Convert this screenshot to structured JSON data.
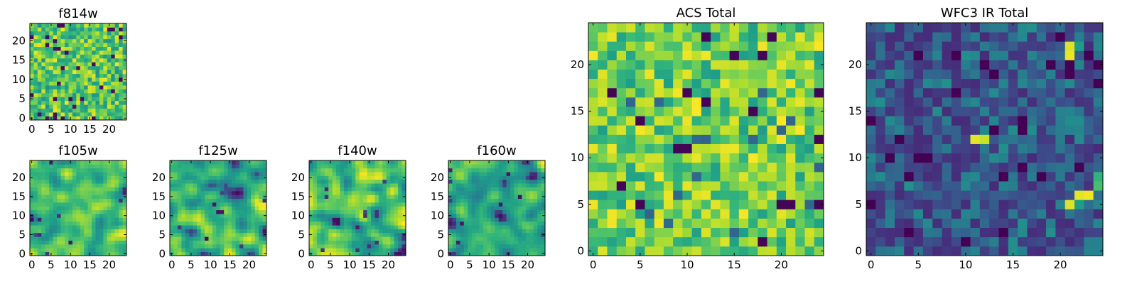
{
  "chart_data": [
    {
      "type": "heatmap",
      "title": "f814w",
      "grid_size": [
        25,
        25
      ],
      "xlim": [
        -0.5,
        24.5
      ],
      "ylim": [
        -0.5,
        24.5
      ],
      "xticks": [
        "0",
        "5",
        "10",
        "15",
        "20"
      ],
      "yticks": [
        "0",
        "5",
        "10",
        "15",
        "20"
      ],
      "colormap": "viridis",
      "style": "near-uniform speckle of teal, green and yellow with sparse dark cells",
      "seed": 814,
      "value_range": [
        0.0,
        1.0
      ]
    },
    {
      "type": "heatmap",
      "title": "f105w",
      "grid_size": [
        25,
        25
      ],
      "xlim": [
        -0.5,
        24.5
      ],
      "ylim": [
        -0.5,
        24.5
      ],
      "xticks": [
        "0",
        "5",
        "10",
        "15",
        "20"
      ],
      "yticks": [
        "0",
        "5",
        "10",
        "15",
        "20"
      ],
      "colormap": "viridis",
      "style": "smooth green-yellow noise with a few dark patches",
      "seed": 105,
      "value_range": [
        0.0,
        1.0
      ]
    },
    {
      "type": "heatmap",
      "title": "f125w",
      "grid_size": [
        25,
        25
      ],
      "xlim": [
        -0.5,
        24.5
      ],
      "ylim": [
        -0.5,
        24.5
      ],
      "xticks": [
        "0",
        "5",
        "10",
        "15",
        "20"
      ],
      "yticks": [
        "0",
        "5",
        "10",
        "15",
        "20"
      ],
      "colormap": "viridis",
      "style": "smooth noise with more blue-teal patches",
      "seed": 125,
      "value_range": [
        0.0,
        1.0
      ]
    },
    {
      "type": "heatmap",
      "title": "f140w",
      "grid_size": [
        25,
        25
      ],
      "xlim": [
        -0.5,
        24.5
      ],
      "ylim": [
        -0.5,
        24.5
      ],
      "xticks": [
        "0",
        "5",
        "10",
        "15",
        "20"
      ],
      "yticks": [
        "0",
        "5",
        "10",
        "15",
        "20"
      ],
      "colormap": "viridis",
      "style": "smooth green-yellow noise with scattered dark cells",
      "seed": 140,
      "value_range": [
        0.0,
        1.0
      ]
    },
    {
      "type": "heatmap",
      "title": "f160w",
      "grid_size": [
        25,
        25
      ],
      "xlim": [
        -0.5,
        24.5
      ],
      "ylim": [
        -0.5,
        24.5
      ],
      "xticks": [
        "0",
        "5",
        "10",
        "15",
        "20"
      ],
      "yticks": [
        "0",
        "5",
        "10",
        "15",
        "20"
      ],
      "colormap": "viridis",
      "style": "smooth noise with bright yellow clumps and dark spots",
      "seed": 160,
      "value_range": [
        0.0,
        1.0
      ]
    },
    {
      "type": "heatmap",
      "title": "ACS Total",
      "grid_size": [
        25,
        25
      ],
      "xlim": [
        -0.5,
        24.5
      ],
      "ylim": [
        -0.5,
        24.5
      ],
      "xticks": [
        "0",
        "5",
        "10",
        "15",
        "20"
      ],
      "yticks": [
        "0",
        "5",
        "10",
        "15",
        "20"
      ],
      "colormap": "viridis",
      "style": "mostly green to yellow-green cells with occasional dark purple cells",
      "seed": 901,
      "value_range": [
        0.0,
        1.0
      ]
    },
    {
      "type": "heatmap",
      "title": "WFC3 IR Total",
      "grid_size": [
        25,
        25
      ],
      "xlim": [
        -0.5,
        24.5
      ],
      "ylim": [
        -0.5,
        24.5
      ],
      "xticks": [
        "0",
        "5",
        "10",
        "15",
        "20"
      ],
      "yticks": [
        "0",
        "5",
        "10",
        "15",
        "20"
      ],
      "colormap": "viridis",
      "style": "mostly dark blue-teal cells with a few bright yellow hotspots",
      "seed": 902,
      "value_range": [
        0.0,
        1.0
      ],
      "hotspots": [
        {
          "x": 21,
          "y": 21,
          "value": 0.97
        },
        {
          "x": 21,
          "y": 22,
          "value": 0.95
        },
        {
          "x": 22,
          "y": 22,
          "value": 0.55
        },
        {
          "x": 11,
          "y": 12,
          "value": 0.96
        },
        {
          "x": 12,
          "y": 12,
          "value": 0.92
        },
        {
          "x": 22,
          "y": 6,
          "value": 0.96
        },
        {
          "x": 23,
          "y": 6,
          "value": 0.98
        },
        {
          "x": 21,
          "y": 5,
          "value": 0.95
        },
        {
          "x": 22,
          "y": 5,
          "value": 0.55
        },
        {
          "x": 24,
          "y": 7,
          "value": 0.7
        },
        {
          "x": 24,
          "y": 8,
          "value": 0.65
        }
      ]
    }
  ]
}
